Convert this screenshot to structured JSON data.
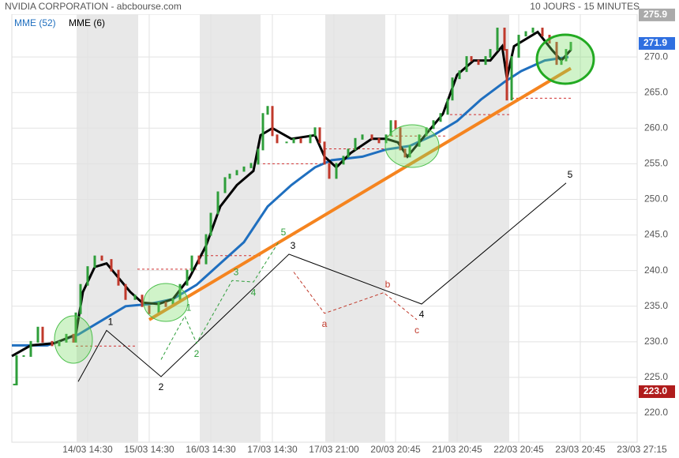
{
  "chart_data": {
    "type": "candlestick",
    "title": "NVIDIA CORPORATION - abcbourse.com",
    "subtitle": "10 JOURS - 15 MINUTES",
    "x": [
      1,
      2,
      5,
      8,
      11,
      13,
      17,
      20,
      23,
      26,
      27,
      29,
      32,
      35,
      38,
      42,
      45,
      48,
      52,
      55,
      58,
      62,
      65,
      68,
      71,
      74,
      76,
      79,
      82,
      84,
      87,
      90,
      92,
      95,
      98,
      101,
      104,
      106,
      108,
      110,
      112,
      116,
      119,
      122,
      126,
      128,
      130,
      132,
      134,
      137,
      140,
      142,
      145,
      148,
      152,
      155,
      158,
      160,
      162,
      164,
      166,
      168,
      172,
      175,
      178,
      181,
      184,
      186,
      189,
      192,
      194,
      197,
      200,
      202,
      205,
      208,
      209,
      211,
      214,
      217,
      220,
      224,
      227,
      230,
      232,
      234,
      236
    ],
    "values": [
      224,
      228,
      228,
      230,
      232,
      230,
      229.5,
      230,
      231,
      230,
      234,
      238,
      240.5,
      242,
      241.5,
      240,
      238,
      236,
      236.5,
      235,
      234,
      235.5,
      235,
      236,
      238,
      240,
      242,
      241,
      245,
      248,
      251,
      253,
      253.5,
      254,
      254.5,
      255,
      257,
      262,
      263,
      259,
      258,
      258,
      258.5,
      258,
      259,
      260,
      258,
      255,
      253,
      255,
      256,
      257,
      258.5,
      259,
      258.5,
      258,
      259,
      261,
      260,
      257,
      256,
      257.5,
      259,
      260,
      261,
      262,
      264,
      267,
      268,
      270,
      269.5,
      269,
      270,
      271,
      274,
      271,
      264,
      270,
      273,
      273.5,
      274,
      273,
      272,
      269,
      269.5,
      271,
      272
    ],
    "up_color": "#2e9e3a",
    "down_color": "#c0392b",
    "xlim": [
      0,
      264
    ],
    "xticks": [
      {
        "value": 32,
        "label": "14/03 14:30"
      },
      {
        "value": 58,
        "label": "15/03 14:30"
      },
      {
        "value": 84,
        "label": "16/03 14:30"
      },
      {
        "value": 110,
        "label": "17/03 14:30"
      },
      {
        "value": 136,
        "label": "17/03 21:00"
      },
      {
        "value": 162,
        "label": "20/03 20:45"
      },
      {
        "value": 188,
        "label": "21/03 20:45"
      },
      {
        "value": 214,
        "label": "22/03 20:45"
      },
      {
        "value": 240,
        "label": "23/03 20:45"
      },
      {
        "value": 266,
        "label": "23/03 27:15"
      }
    ],
    "ylim": [
      215.9,
      276
    ],
    "yticks": [
      {
        "value": 220,
        "label": "220.0"
      },
      {
        "value": 225,
        "label": "225.0"
      },
      {
        "value": 230,
        "label": "230.0"
      },
      {
        "value": 235,
        "label": "235.0"
      },
      {
        "value": 240,
        "label": "240.0"
      },
      {
        "value": 245,
        "label": "245.0"
      },
      {
        "value": 250,
        "label": "250.0"
      },
      {
        "value": 255,
        "label": "255.0"
      },
      {
        "value": 260,
        "label": "260.0"
      },
      {
        "value": 265,
        "label": "265.0"
      },
      {
        "value": 270,
        "label": "270.0"
      }
    ],
    "grid": true,
    "series": [
      {
        "name": "MME (52)",
        "color": "#1f6fbf",
        "x": [
          0,
          15,
          28,
          38,
          48,
          58,
          68,
          78,
          88,
          98,
          108,
          118,
          128,
          135,
          148,
          158,
          168,
          178,
          188,
          198,
          208,
          215,
          225,
          235
        ],
        "values": [
          229.5,
          229.5,
          231,
          233,
          235,
          235.3,
          236,
          238,
          241,
          244,
          249,
          252,
          254.5,
          255.5,
          256,
          257,
          257.5,
          259,
          261,
          264,
          266.5,
          268,
          269.5,
          270
        ]
      },
      {
        "name": "MME (6)",
        "color": "#000000",
        "x": [
          0,
          8,
          18,
          27,
          30,
          35,
          40,
          45,
          50,
          55,
          62,
          68,
          75,
          82,
          88,
          95,
          102,
          105,
          110,
          118,
          128,
          132,
          137,
          143,
          152,
          158,
          163,
          167,
          172,
          182,
          188,
          195,
          202,
          207,
          209,
          212,
          222,
          228,
          232,
          236
        ],
        "values": [
          228,
          229.5,
          229.8,
          231,
          237,
          240.5,
          241,
          239,
          237,
          235.5,
          235.3,
          236,
          239,
          243.5,
          249,
          252,
          254,
          259,
          260,
          258.5,
          259,
          256,
          254.5,
          256.5,
          258.5,
          258.5,
          258,
          256,
          258,
          262,
          267.5,
          269.5,
          269.5,
          271.5,
          267,
          271.5,
          273.5,
          271,
          269.5,
          271
        ]
      }
    ],
    "trendline": {
      "color": "#f5841f",
      "x": [
        58,
        236
      ],
      "values": [
        233.1,
        268.4
      ]
    },
    "waves": [
      {
        "color": "#000000",
        "dashed": false,
        "x": [
          28,
          40,
          63,
          117,
          173,
          234
        ],
        "values": [
          224.4,
          231.6,
          225.1,
          242.3,
          235.3,
          252.3
        ],
        "labels": [
          null,
          "1",
          "2",
          "3",
          "4",
          "5"
        ]
      },
      {
        "color": "#c0392b",
        "dashed": true,
        "x": [
          119,
          132,
          157,
          171
        ],
        "values": [
          239.8,
          234,
          236.9,
          233.1
        ],
        "labels": [
          null,
          "a",
          "b",
          "c"
        ]
      },
      {
        "color": "#2e9e3a",
        "dashed": true,
        "x": [
          63,
          73,
          78,
          93,
          102,
          113
        ],
        "values": [
          227.5,
          233.6,
          229.8,
          238.6,
          238.4,
          244.2
        ],
        "labels": [
          null,
          "1",
          "2",
          "3",
          "4",
          "5"
        ]
      }
    ],
    "levels": [
      {
        "x": [
          27,
          53
        ],
        "value": 229.4
      },
      {
        "x": [
          53,
          78
        ],
        "value": 240.2
      },
      {
        "x": [
          80,
          105
        ],
        "value": 242.1
      },
      {
        "x": [
          106,
          132
        ],
        "value": 255.0
      },
      {
        "x": [
          132,
          158
        ],
        "value": 257.1
      },
      {
        "x": [
          158,
          184
        ],
        "value": 258.9
      },
      {
        "x": [
          185,
          210
        ],
        "value": 261.9
      },
      {
        "x": [
          211,
          237
        ],
        "value": 264.2
      }
    ],
    "price_tags": [
      {
        "value": 275.9,
        "label": "275.9",
        "color": "#aaaaaa"
      },
      {
        "value": 271.9,
        "label": "271.9",
        "color": "#2f6fe0"
      },
      {
        "value": 223.0,
        "label": "223.0",
        "color": "#b01c1c"
      }
    ]
  }
}
